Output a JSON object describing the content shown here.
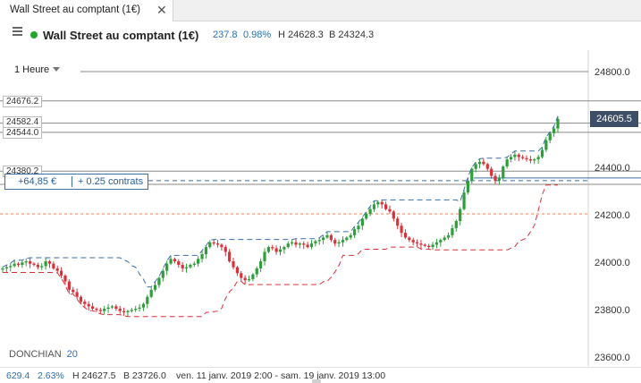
{
  "tab": {
    "label": "Wall Street au comptant (1€)",
    "close_icon": "close-icon"
  },
  "header": {
    "title": "Wall Street au comptant (1€)",
    "change": "237.8",
    "change_pct": "0.98%",
    "high": "H 24628.3",
    "low": "B 24324.3",
    "status_color": "#1fa82a"
  },
  "timeframe": "1 Heure",
  "levels": [
    {
      "id": "lvl1",
      "text": "24676.2"
    },
    {
      "id": "lvl2",
      "text": "24582.4"
    },
    {
      "id": "lvl3",
      "text": "24544.0"
    },
    {
      "id": "lvl4",
      "text": "24380.2"
    }
  ],
  "current_price": "24605.5",
  "position": {
    "pnl": "+64,85 €",
    "size": "+ 0.25 contrats"
  },
  "indicator": {
    "name": "DONCHIAN",
    "period": "20"
  },
  "footer": {
    "change": "629.4",
    "change_pct": "2.63%",
    "high": "H 24627.5",
    "low": "B 23726.0",
    "range": "ven. 11 janv. 2019 2:00 - sam. 19 janv. 2019 13:00"
  },
  "colors": {
    "up": "#2e9e3a",
    "down": "#d9313a",
    "donchian_upper": "#3a6ea5",
    "donchian_lower": "#d9313a",
    "reference": "#e8825a"
  },
  "chart_data": {
    "type": "candlestick",
    "yaxis_ticks": [
      "24800.0",
      "24600.0",
      "24400.0",
      "24200.0",
      "24000.0",
      "23800.0",
      "23600.0"
    ],
    "ylim": [
      23560,
      24850
    ],
    "levels": [
      24676.2,
      24582.4,
      24544.0,
      24380.2,
      24324.3
    ],
    "position_entry": 24340,
    "reference_level": 24200,
    "close": [
      23970,
      23975,
      23980,
      23990,
      23985,
      23995,
      24000,
      23990,
      23985,
      23975,
      23980,
      24000,
      23990,
      23970,
      23960,
      23940,
      23915,
      23880,
      23870,
      23850,
      23830,
      23820,
      23810,
      23800,
      23795,
      23790,
      23800,
      23805,
      23810,
      23800,
      23790,
      23785,
      23790,
      23795,
      23800,
      23805,
      23820,
      23850,
      23880,
      23900,
      23930,
      23960,
      23990,
      24010,
      24000,
      23985,
      23970,
      23975,
      23985,
      23990,
      24010,
      24030,
      24060,
      24080,
      24075,
      24070,
      24060,
      24040,
      24000,
      23975,
      23950,
      23930,
      23920,
      23925,
      23945,
      23970,
      24000,
      24040,
      24060,
      24055,
      24040,
      24050,
      24060,
      24075,
      24080,
      24070,
      24075,
      24070,
      24060,
      24075,
      24085,
      24090,
      24100,
      24110,
      24090,
      24075,
      24080,
      24090,
      24100,
      24110,
      24135,
      24150,
      24180,
      24200,
      24220,
      24240,
      24250,
      24240,
      24220,
      24210,
      24180,
      24150,
      24120,
      24100,
      24090,
      24080,
      24075,
      24070,
      24065,
      24060,
      24070,
      24080,
      24090,
      24100,
      24110,
      24140,
      24170,
      24220,
      24290,
      24340,
      24390,
      24410,
      24420,
      24410,
      24390,
      24360,
      24340,
      24350,
      24400,
      24430,
      24440,
      24450,
      24440,
      24435,
      24430,
      24425,
      24430,
      24440,
      24470,
      24510,
      24540,
      24560,
      24600
    ]
  }
}
